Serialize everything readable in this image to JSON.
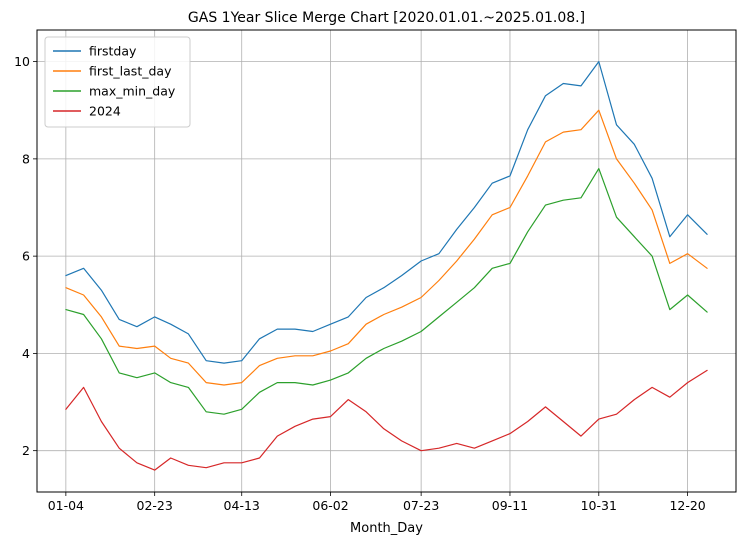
{
  "chart_data": {
    "type": "line",
    "title": "GAS 1Year Slice Merge Chart [2020.01.01.~2025.01.08.]",
    "xlabel": "Month_Day",
    "ylabel": "",
    "x_ticks": [
      "01-04",
      "02-23",
      "04-13",
      "06-02",
      "07-23",
      "09-11",
      "10-31",
      "12-20"
    ],
    "y_ticks": [
      2,
      4,
      6,
      8,
      10
    ],
    "ylim": [
      1.15,
      10.65
    ],
    "xlim": [
      "01-04",
      "12-31"
    ],
    "grid": true,
    "legend_position": "top-left",
    "x": [
      "01-04",
      "01-14",
      "01-24",
      "02-03",
      "02-13",
      "02-23",
      "03-04",
      "03-14",
      "03-24",
      "04-03",
      "04-13",
      "04-23",
      "05-03",
      "05-13",
      "05-23",
      "06-02",
      "06-12",
      "06-22",
      "07-02",
      "07-12",
      "07-23",
      "08-02",
      "08-12",
      "08-22",
      "09-01",
      "09-11",
      "09-21",
      "10-01",
      "10-11",
      "10-21",
      "10-31",
      "11-10",
      "11-20",
      "11-30",
      "12-10",
      "12-20",
      "12-31"
    ],
    "series": [
      {
        "name": "firstday",
        "color": "#1f77b4",
        "values": [
          5.6,
          5.75,
          5.3,
          4.7,
          4.55,
          4.75,
          4.6,
          4.4,
          3.85,
          3.8,
          3.85,
          4.3,
          4.5,
          4.5,
          4.45,
          4.6,
          4.75,
          5.15,
          5.35,
          5.6,
          5.9,
          6.05,
          6.55,
          7.0,
          7.5,
          7.65,
          8.6,
          9.3,
          9.55,
          9.5,
          10.0,
          8.7,
          8.3,
          7.6,
          6.4,
          6.85,
          6.45
        ]
      },
      {
        "name": "first_last_day",
        "color": "#ff7f0e",
        "values": [
          5.35,
          5.2,
          4.75,
          4.15,
          4.1,
          4.15,
          3.9,
          3.8,
          3.4,
          3.35,
          3.4,
          3.75,
          3.9,
          3.95,
          3.95,
          4.05,
          4.2,
          4.6,
          4.8,
          4.95,
          5.15,
          5.5,
          5.9,
          6.35,
          6.85,
          7.0,
          7.65,
          8.35,
          8.55,
          8.6,
          9.0,
          8.0,
          7.5,
          6.95,
          5.85,
          6.05,
          5.75
        ]
      },
      {
        "name": "max_min_day",
        "color": "#2ca02c",
        "values": [
          4.9,
          4.8,
          4.3,
          3.6,
          3.5,
          3.6,
          3.4,
          3.3,
          2.8,
          2.75,
          2.85,
          3.2,
          3.4,
          3.4,
          3.35,
          3.45,
          3.6,
          3.9,
          4.1,
          4.25,
          4.45,
          4.75,
          5.05,
          5.35,
          5.75,
          5.85,
          6.5,
          7.05,
          7.15,
          7.2,
          7.8,
          6.8,
          6.4,
          6.0,
          4.9,
          5.2,
          4.85
        ]
      },
      {
        "name": "2024",
        "color": "#d62728",
        "values": [
          2.85,
          3.3,
          2.6,
          2.05,
          1.75,
          1.6,
          1.85,
          1.7,
          1.65,
          1.75,
          1.75,
          1.85,
          2.3,
          2.5,
          2.65,
          2.7,
          3.05,
          2.8,
          2.45,
          2.2,
          2.0,
          2.05,
          2.15,
          2.05,
          2.2,
          2.35,
          2.6,
          2.9,
          2.6,
          2.3,
          2.65,
          2.75,
          3.05,
          3.3,
          3.1,
          3.4,
          3.65
        ]
      }
    ]
  }
}
